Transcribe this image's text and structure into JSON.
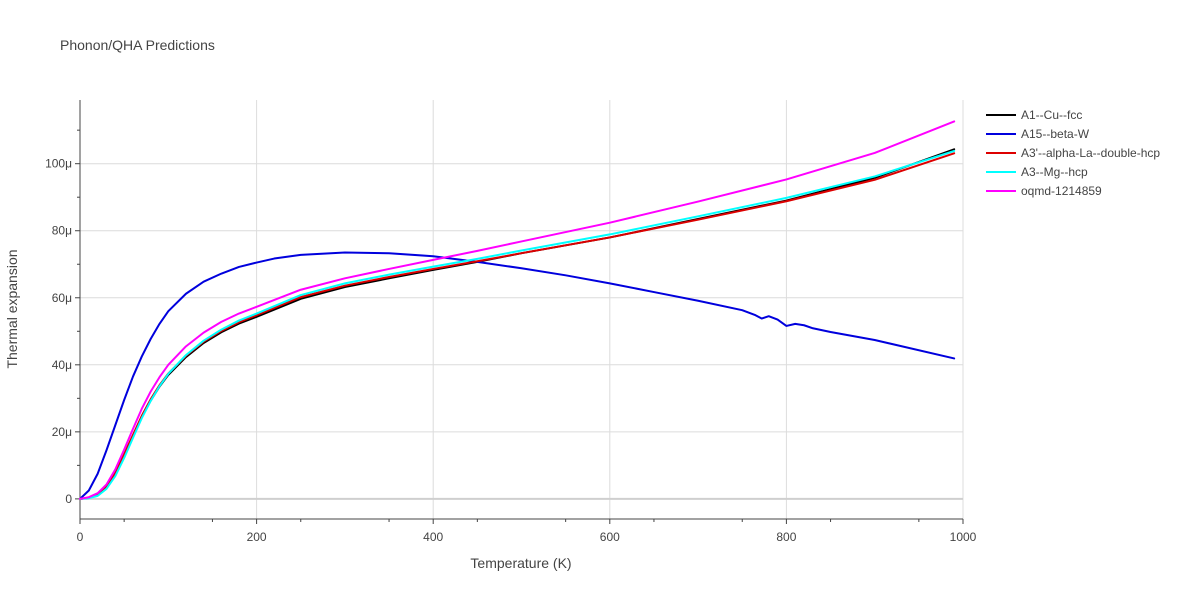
{
  "chart_data": {
    "type": "line",
    "title": "Phonon/QHA Predictions",
    "xlabel": "Temperature (K)",
    "ylabel": "Thermal expansion",
    "xlim": [
      0,
      1000
    ],
    "ylim": [
      -6e-06,
      0.000119
    ],
    "x_ticks": [
      0,
      200,
      400,
      600,
      800,
      1000
    ],
    "x_tick_labels": [
      "0",
      "200",
      "400",
      "600",
      "800",
      "1000"
    ],
    "y_ticks": [
      0,
      2e-05,
      4e-05,
      6e-05,
      8e-05,
      0.0001
    ],
    "y_tick_labels": [
      "0",
      "20μ",
      "40μ",
      "60μ",
      "80μ",
      "100μ"
    ],
    "grid": true,
    "legend_position": "top-right",
    "series": [
      {
        "name": "A1--Cu--fcc",
        "color": "#000000",
        "x": [
          0,
          10,
          20,
          30,
          40,
          50,
          60,
          70,
          80,
          90,
          100,
          120,
          140,
          160,
          180,
          200,
          250,
          300,
          350,
          400,
          450,
          500,
          600,
          700,
          800,
          900,
          990
        ],
        "y": [
          0,
          3e-07,
          1.2e-06,
          3.5e-06,
          7.5e-06,
          1.3e-05,
          1.88e-05,
          2.45e-05,
          2.93e-05,
          3.35e-05,
          3.7e-05,
          4.23e-05,
          4.65e-05,
          4.97e-05,
          5.23e-05,
          5.43e-05,
          5.97e-05,
          6.32e-05,
          6.58e-05,
          6.83e-05,
          7.07e-05,
          7.33e-05,
          7.8e-05,
          8.35e-05,
          8.9e-05,
          9.58e-05,
          0.0001043
        ]
      },
      {
        "name": "A15--beta-W",
        "color": "#0000dd",
        "x": [
          0,
          10,
          20,
          30,
          40,
          50,
          60,
          70,
          80,
          90,
          100,
          120,
          140,
          160,
          180,
          200,
          220,
          250,
          300,
          350,
          400,
          450,
          500,
          550,
          600,
          650,
          700,
          750,
          765,
          772,
          780,
          790,
          800,
          810,
          820,
          830,
          850,
          900,
          990
        ],
        "y": [
          0,
          2.5e-06,
          7.5e-06,
          1.45e-05,
          2.2e-05,
          2.95e-05,
          3.65e-05,
          4.25e-05,
          4.77e-05,
          5.22e-05,
          5.6e-05,
          6.12e-05,
          6.48e-05,
          6.72e-05,
          6.92e-05,
          7.05e-05,
          7.17e-05,
          7.28e-05,
          7.35e-05,
          7.33e-05,
          7.24e-05,
          7.07e-05,
          6.88e-05,
          6.67e-05,
          6.43e-05,
          6.17e-05,
          5.91e-05,
          5.63e-05,
          5.48e-05,
          5.38e-05,
          5.45e-05,
          5.35e-05,
          5.16e-05,
          5.22e-05,
          5.18e-05,
          5.09e-05,
          4.98e-05,
          4.74e-05,
          4.19e-05
        ]
      },
      {
        "name": "A3'--alpha-La--double-hcp",
        "color": "#dd0000",
        "x": [
          0,
          10,
          20,
          30,
          40,
          50,
          60,
          70,
          80,
          90,
          100,
          120,
          140,
          160,
          180,
          200,
          250,
          300,
          350,
          400,
          450,
          500,
          600,
          700,
          800,
          900,
          990
        ],
        "y": [
          0,
          3e-07,
          1.3e-06,
          3.7e-06,
          7.8e-06,
          1.33e-05,
          1.91e-05,
          2.48e-05,
          2.97e-05,
          3.39e-05,
          3.74e-05,
          4.27e-05,
          4.69e-05,
          5.01e-05,
          5.27e-05,
          5.48e-05,
          6.02e-05,
          6.36e-05,
          6.62e-05,
          6.86e-05,
          7.09e-05,
          7.33e-05,
          7.8e-05,
          8.33e-05,
          8.88e-05,
          9.52e-05,
          0.0001031
        ]
      },
      {
        "name": "A3--Mg--hcp",
        "color": "#00ffff",
        "x": [
          0,
          10,
          20,
          30,
          40,
          50,
          60,
          70,
          80,
          90,
          100,
          120,
          140,
          160,
          180,
          200,
          250,
          300,
          350,
          400,
          450,
          500,
          600,
          700,
          800,
          900,
          990
        ],
        "y": [
          0,
          2e-07,
          9e-07,
          3e-06,
          6.8e-06,
          1.22e-05,
          1.82e-05,
          2.41e-05,
          2.92e-05,
          3.36e-05,
          3.73e-05,
          4.29e-05,
          4.72e-05,
          5.05e-05,
          5.32e-05,
          5.53e-05,
          6.08e-05,
          6.43e-05,
          6.69e-05,
          6.93e-05,
          7.16e-05,
          7.41e-05,
          7.89e-05,
          8.43e-05,
          8.98e-05,
          9.62e-05,
          0.0001038
        ]
      },
      {
        "name": "oqmd-1214859",
        "color": "#ff00ff",
        "x": [
          0,
          10,
          20,
          30,
          40,
          50,
          60,
          70,
          80,
          90,
          100,
          120,
          140,
          160,
          180,
          200,
          250,
          300,
          350,
          400,
          450,
          500,
          600,
          700,
          800,
          900,
          990
        ],
        "y": [
          0,
          5e-07,
          1.7e-06,
          4.3e-06,
          8.8e-06,
          1.47e-05,
          2.09e-05,
          2.69e-05,
          3.2e-05,
          3.63e-05,
          4e-05,
          4.55e-05,
          4.96e-05,
          5.28e-05,
          5.53e-05,
          5.73e-05,
          6.24e-05,
          6.58e-05,
          6.86e-05,
          7.13e-05,
          7.4e-05,
          7.68e-05,
          8.24e-05,
          8.87e-05,
          9.53e-05,
          0.0001032,
          0.0001126
        ]
      }
    ]
  }
}
